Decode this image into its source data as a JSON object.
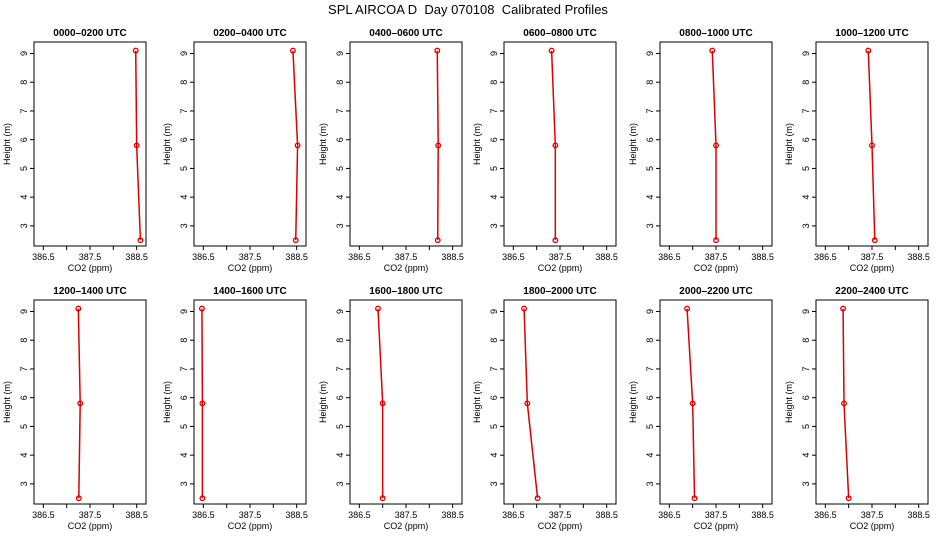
{
  "page_title": "SPL AIRCOA D  Day 070108  Calibrated Profiles",
  "colors": {
    "line": "#dd0000",
    "frame": "#000000"
  },
  "chart_data": [
    {
      "type": "line",
      "title": "0000–0200 UTC",
      "xlabel": "CO2 (ppm)",
      "ylabel": "Height (m)",
      "xlim": [
        386.3,
        388.7
      ],
      "ylim": [
        2.3,
        9.4
      ],
      "xticks": [
        386.5,
        387.5,
        388.5
      ],
      "xtick_labels": [
        "386.5",
        "387.5",
        "388.5"
      ],
      "xtick_minor": [
        387.0,
        388.0
      ],
      "yticks": [
        3,
        4,
        5,
        6,
        7,
        8,
        9
      ],
      "heights": [
        9.1,
        5.8,
        2.5
      ],
      "co2": [
        388.48,
        388.5,
        388.58
      ],
      "grid": false
    },
    {
      "type": "line",
      "title": "0200–0400 UTC",
      "xlabel": "CO2 (ppm)",
      "ylabel": "Height (m)",
      "xlim": [
        386.3,
        388.7
      ],
      "ylim": [
        2.3,
        9.4
      ],
      "xticks": [
        386.5,
        387.5,
        388.5
      ],
      "xtick_labels": [
        "386.5",
        "387.5",
        "388.5"
      ],
      "xtick_minor": [
        387.0,
        388.0
      ],
      "yticks": [
        3,
        4,
        5,
        6,
        7,
        8,
        9
      ],
      "heights": [
        9.1,
        5.8,
        2.5
      ],
      "co2": [
        388.42,
        388.52,
        388.48
      ],
      "grid": false
    },
    {
      "type": "line",
      "title": "0400–0600 UTC",
      "xlabel": "CO2 (ppm)",
      "ylabel": "Height (m)",
      "xlim": [
        386.3,
        388.7
      ],
      "ylim": [
        2.3,
        9.4
      ],
      "xticks": [
        386.5,
        387.5,
        388.5
      ],
      "xtick_labels": [
        "386.5",
        "387.5",
        "388.5"
      ],
      "xtick_minor": [
        387.0,
        388.0
      ],
      "yticks": [
        3,
        4,
        5,
        6,
        7,
        8,
        9
      ],
      "heights": [
        9.1,
        5.8,
        2.5
      ],
      "co2": [
        388.17,
        388.19,
        388.18
      ],
      "grid": false
    },
    {
      "type": "line",
      "title": "0600–0800 UTC",
      "xlabel": "CO2 (ppm)",
      "ylabel": "Height (m)",
      "xlim": [
        386.3,
        388.7
      ],
      "ylim": [
        2.3,
        9.4
      ],
      "xticks": [
        386.5,
        387.5,
        388.5
      ],
      "xtick_labels": [
        "386.5",
        "387.5",
        "388.5"
      ],
      "xtick_minor": [
        387.0,
        388.0
      ],
      "yticks": [
        3,
        4,
        5,
        6,
        7,
        8,
        9
      ],
      "heights": [
        9.1,
        5.8,
        2.5
      ],
      "co2": [
        387.32,
        387.4,
        387.4
      ],
      "grid": false
    },
    {
      "type": "line",
      "title": "0800–1000 UTC",
      "xlabel": "CO2 (ppm)",
      "ylabel": "Height (m)",
      "xlim": [
        386.3,
        388.7
      ],
      "ylim": [
        2.3,
        9.4
      ],
      "xticks": [
        386.5,
        387.5,
        388.5
      ],
      "xtick_labels": [
        "386.5",
        "387.5",
        "388.5"
      ],
      "xtick_minor": [
        387.0,
        388.0
      ],
      "yticks": [
        3,
        4,
        5,
        6,
        7,
        8,
        9
      ],
      "heights": [
        9.1,
        5.8,
        2.5
      ],
      "co2": [
        387.42,
        387.5,
        387.5
      ],
      "grid": false
    },
    {
      "type": "line",
      "title": "1000–1200 UTC",
      "xlabel": "CO2 (ppm)",
      "ylabel": "Height (m)",
      "xlim": [
        386.3,
        388.7
      ],
      "ylim": [
        2.3,
        9.4
      ],
      "xticks": [
        386.5,
        387.5,
        388.5
      ],
      "xtick_labels": [
        "386.5",
        "387.5",
        "388.5"
      ],
      "xtick_minor": [
        387.0,
        388.0
      ],
      "yticks": [
        3,
        4,
        5,
        6,
        7,
        8,
        9
      ],
      "heights": [
        9.1,
        5.8,
        2.5
      ],
      "co2": [
        387.42,
        387.5,
        387.56
      ],
      "grid": false
    },
    {
      "type": "line",
      "title": "1200–1400 UTC",
      "xlabel": "CO2 (ppm)",
      "ylabel": "Height (m)",
      "xlim": [
        386.3,
        388.7
      ],
      "ylim": [
        2.3,
        9.4
      ],
      "xticks": [
        386.5,
        387.5,
        388.5
      ],
      "xtick_labels": [
        "386.5",
        "387.5",
        "388.5"
      ],
      "xtick_minor": [
        387.0,
        388.0
      ],
      "yticks": [
        3,
        4,
        5,
        6,
        7,
        8,
        9
      ],
      "heights": [
        9.1,
        5.8,
        2.5
      ],
      "co2": [
        387.25,
        387.29,
        387.26
      ],
      "grid": false
    },
    {
      "type": "line",
      "title": "1400–1600 UTC",
      "xlabel": "CO2 (ppm)",
      "ylabel": "Height (m)",
      "xlim": [
        386.3,
        388.7
      ],
      "ylim": [
        2.3,
        9.4
      ],
      "xticks": [
        386.5,
        387.5,
        388.5
      ],
      "xtick_labels": [
        "386.5",
        "387.5",
        "388.5"
      ],
      "xtick_minor": [
        387.0,
        388.0
      ],
      "yticks": [
        3,
        4,
        5,
        6,
        7,
        8,
        9
      ],
      "heights": [
        9.1,
        5.8,
        2.5
      ],
      "co2": [
        386.47,
        386.48,
        386.48
      ],
      "grid": false
    },
    {
      "type": "line",
      "title": "1600–1800 UTC",
      "xlabel": "CO2 (ppm)",
      "ylabel": "Height (m)",
      "xlim": [
        386.3,
        388.7
      ],
      "ylim": [
        2.3,
        9.4
      ],
      "xticks": [
        386.5,
        387.5,
        388.5
      ],
      "xtick_labels": [
        "386.5",
        "387.5",
        "388.5"
      ],
      "xtick_minor": [
        387.0,
        388.0
      ],
      "yticks": [
        3,
        4,
        5,
        6,
        7,
        8,
        9
      ],
      "heights": [
        9.1,
        5.8,
        2.5
      ],
      "co2": [
        386.9,
        387.0,
        387.0
      ],
      "grid": false
    },
    {
      "type": "line",
      "title": "1800–2000 UTC",
      "xlabel": "CO2 (ppm)",
      "ylabel": "Height (m)",
      "xlim": [
        386.3,
        388.7
      ],
      "ylim": [
        2.3,
        9.4
      ],
      "xticks": [
        386.5,
        387.5,
        388.5
      ],
      "xtick_labels": [
        "386.5",
        "387.5",
        "388.5"
      ],
      "xtick_minor": [
        387.0,
        388.0
      ],
      "yticks": [
        3,
        4,
        5,
        6,
        7,
        8,
        9
      ],
      "heights": [
        9.1,
        5.8,
        2.5
      ],
      "co2": [
        386.73,
        386.8,
        387.02
      ],
      "grid": false
    },
    {
      "type": "line",
      "title": "2000–2200 UTC",
      "xlabel": "CO2 (ppm)",
      "ylabel": "Height (m)",
      "xlim": [
        386.3,
        388.7
      ],
      "ylim": [
        2.3,
        9.4
      ],
      "xticks": [
        386.5,
        387.5,
        388.5
      ],
      "xtick_labels": [
        "386.5",
        "387.5",
        "388.5"
      ],
      "xtick_minor": [
        387.0,
        388.0
      ],
      "yticks": [
        3,
        4,
        5,
        6,
        7,
        8,
        9
      ],
      "heights": [
        9.1,
        5.8,
        2.5
      ],
      "co2": [
        386.88,
        387.0,
        387.04
      ],
      "grid": false
    },
    {
      "type": "line",
      "title": "2200–2400 UTC",
      "xlabel": "CO2 (ppm)",
      "ylabel": "Height (m)",
      "xlim": [
        386.3,
        388.7
      ],
      "ylim": [
        2.3,
        9.4
      ],
      "xticks": [
        386.5,
        387.5,
        388.5
      ],
      "xtick_labels": [
        "386.5",
        "387.5",
        "388.5"
      ],
      "xtick_minor": [
        387.0,
        388.0
      ],
      "yticks": [
        3,
        4,
        5,
        6,
        7,
        8,
        9
      ],
      "heights": [
        9.1,
        5.8,
        2.5
      ],
      "co2": [
        386.88,
        386.9,
        387.0
      ],
      "grid": false
    }
  ]
}
